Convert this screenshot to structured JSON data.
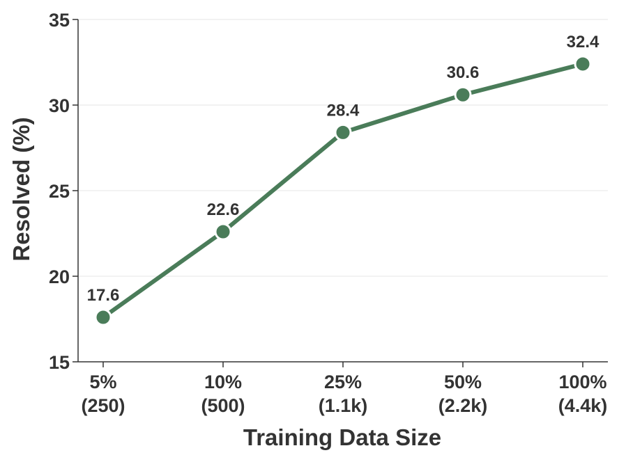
{
  "chart_data": {
    "type": "line",
    "categories": [
      "5%\n(250)",
      "10%\n(500)",
      "25%\n(1.1k)",
      "50%\n(2.2k)",
      "100%\n(4.4k)"
    ],
    "category_lines": [
      [
        "5%",
        "(250)"
      ],
      [
        "10%",
        "(500)"
      ],
      [
        "25%",
        "(1.1k)"
      ],
      [
        "50%",
        "(2.2k)"
      ],
      [
        "100%",
        "(4.4k)"
      ]
    ],
    "series": [
      {
        "values": [
          17.6,
          22.6,
          28.4,
          30.6,
          32.4
        ],
        "color": "#4a7c59"
      }
    ],
    "data_labels": [
      "17.6",
      "22.6",
      "28.4",
      "30.6",
      "32.4"
    ],
    "xlabel": "Training Data Size",
    "ylabel": "Resolved (%)",
    "ylim": [
      15,
      35
    ],
    "yticks": [
      15,
      20,
      25,
      30,
      35
    ],
    "ytick_labels": [
      "15",
      "20",
      "25",
      "30",
      "35"
    ],
    "grid": "horizontal",
    "colors": {
      "line": "#4a7c59",
      "marker_edge": "#ffffff",
      "grid": "#e6e6e6",
      "axis": "#333333",
      "text": "#333333"
    }
  }
}
